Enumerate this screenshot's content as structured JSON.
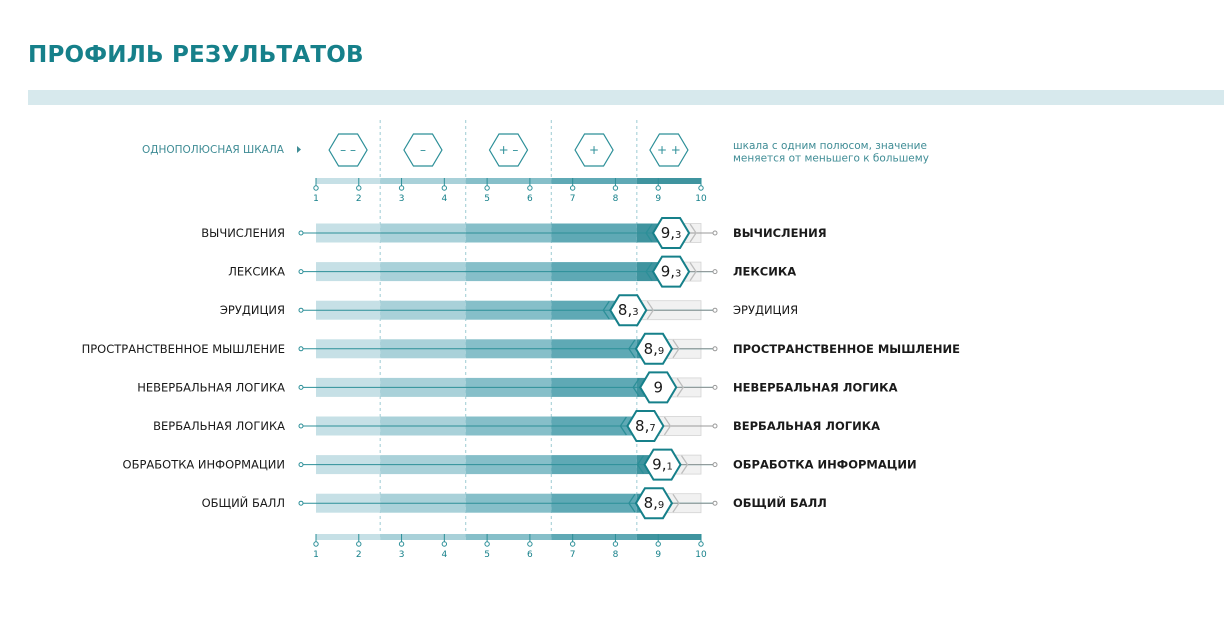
{
  "page": {
    "title": "ПРОФИЛЬ РЕЗУЛЬТАТОВ"
  },
  "colors": {
    "accent": "#16808a",
    "band1": "#c6e0e6",
    "band2": "#a9d1d9",
    "band3": "#86bfc9",
    "band4": "#5fa9b5",
    "band5": "#3f949f",
    "empty": "#f1f1f1",
    "line": "#2c8f98"
  },
  "chart_data": {
    "type": "bar",
    "title": "ПРОФИЛЬ РЕЗУЛЬТАТОВ",
    "scale_label": "ОДНОПОЛЮСНАЯ ШКАЛА",
    "scale_description": [
      "шкала с одним полюсом, значение",
      "меняется от меньшего к большему"
    ],
    "scale_min": 1,
    "scale_max": 10,
    "ticks": [
      "1",
      "2",
      "3",
      "4",
      "5",
      "6",
      "7",
      "8",
      "9",
      "10"
    ],
    "zones": [
      {
        "symbol": "– –",
        "from": 1,
        "to": 2.5
      },
      {
        "symbol": "–",
        "from": 2.5,
        "to": 4.5
      },
      {
        "symbol": "+ –",
        "from": 4.5,
        "to": 6.5
      },
      {
        "symbol": "+",
        "from": 6.5,
        "to": 8.5
      },
      {
        "symbol": "+ +",
        "from": 8.5,
        "to": 10
      }
    ],
    "rows": [
      {
        "left_label": "ВЫЧИСЛЕНИЯ",
        "right_label": "ВЫЧИСЛЕНИЯ",
        "value": 9.3,
        "int": "9",
        "frac": "3",
        "right_bold": true
      },
      {
        "left_label": "ЛЕКСИКА",
        "right_label": "ЛЕКСИКА",
        "value": 9.3,
        "int": "9",
        "frac": "3",
        "right_bold": true
      },
      {
        "left_label": "ЭРУДИЦИЯ",
        "right_label": "ЭРУДИЦИЯ",
        "value": 8.3,
        "int": "8",
        "frac": "3",
        "right_bold": false
      },
      {
        "left_label": "ПРОСТРАНСТВЕННОЕ МЫШЛЕНИЕ",
        "right_label": "ПРОСТРАНСТВЕННОЕ МЫШЛЕНИЕ",
        "value": 8.9,
        "int": "8",
        "frac": "9",
        "right_bold": true
      },
      {
        "left_label": "НЕВЕРБАЛЬНАЯ ЛОГИКА",
        "right_label": "НЕВЕРБАЛЬНАЯ ЛОГИКА",
        "value": 9.0,
        "int": "9",
        "frac": "",
        "right_bold": true
      },
      {
        "left_label": "ВЕРБАЛЬНАЯ ЛОГИКА",
        "right_label": "ВЕРБАЛЬНАЯ ЛОГИКА",
        "value": 8.7,
        "int": "8",
        "frac": "7",
        "right_bold": true
      },
      {
        "left_label": "ОБРАБОТКА ИНФОРМАЦИИ",
        "right_label": "ОБРАБОТКА ИНФОРМАЦИИ",
        "value": 9.1,
        "int": "9",
        "frac": "1",
        "right_bold": true
      },
      {
        "left_label": "ОБЩИЙ БАЛЛ",
        "right_label": "ОБЩИЙ БАЛЛ",
        "value": 8.9,
        "int": "8",
        "frac": "9",
        "right_bold": true
      }
    ]
  }
}
